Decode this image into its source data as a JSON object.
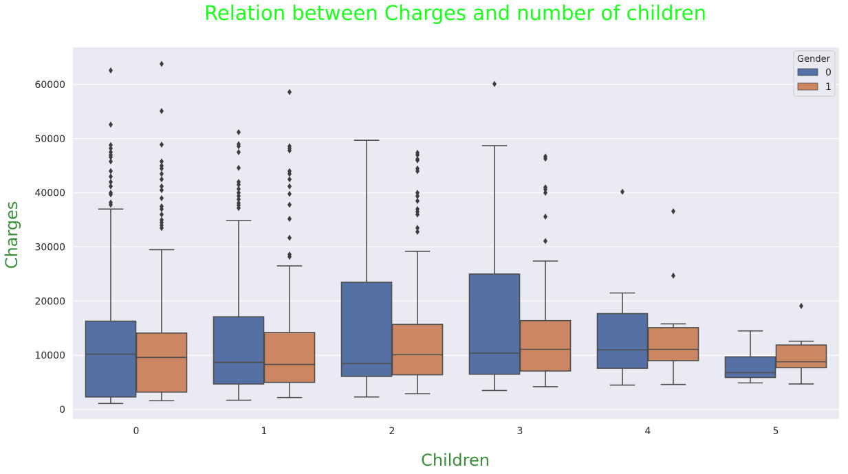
{
  "chart_data": {
    "type": "box",
    "title": "Relation between Charges and number of children",
    "xlabel": "Children",
    "ylabel": "Charges",
    "categories": [
      "0",
      "1",
      "2",
      "3",
      "4",
      "5"
    ],
    "ylim": [
      -2000,
      67000
    ],
    "yticks": [
      0,
      10000,
      20000,
      30000,
      40000,
      50000,
      60000
    ],
    "grid": true,
    "legend": {
      "title": "Gender",
      "position": "top-right"
    },
    "colors": {
      "title": "#1aff1a",
      "axis_label": "#3a8f3a",
      "background": "#eaeaf2",
      "grid": "#ffffff",
      "line": "#4d4d4d"
    },
    "series": [
      {
        "name": "0",
        "color": "#5470a4",
        "boxes": [
          {
            "whislo": 1100,
            "q1": 2300,
            "med": 10200,
            "q3": 16300,
            "whishi": 37000,
            "fliers": [
              37800,
              38200,
              39700,
              40000,
              41200,
              42000,
              43000,
              44000,
              45800,
              46600,
              47000,
              47500,
              48200,
              48800,
              52600,
              62600
            ]
          },
          {
            "whislo": 1700,
            "q1": 4700,
            "med": 8700,
            "q3": 17100,
            "whishi": 34900,
            "fliers": [
              37200,
              37700,
              38100,
              38800,
              39400,
              40000,
              40700,
              41500,
              42000,
              44600,
              47500,
              48600,
              49000,
              51200
            ]
          },
          {
            "whislo": 2300,
            "q1": 6100,
            "med": 8500,
            "q3": 23500,
            "whishi": 49700,
            "fliers": []
          },
          {
            "whislo": 3500,
            "q1": 6500,
            "med": 10400,
            "q3": 25000,
            "whishi": 48700,
            "fliers": [
              60100
            ]
          },
          {
            "whislo": 4500,
            "q1": 7600,
            "med": 11000,
            "q3": 17700,
            "whishi": 21500,
            "fliers": [
              40200
            ]
          },
          {
            "whislo": 4900,
            "q1": 5900,
            "med": 6800,
            "q3": 9700,
            "whishi": 14500,
            "fliers": []
          }
        ]
      },
      {
        "name": "1",
        "color": "#cc8661",
        "boxes": [
          {
            "whislo": 1600,
            "q1": 3200,
            "med": 9600,
            "q3": 14100,
            "whishi": 29500,
            "fliers": [
              33500,
              34000,
              34500,
              35000,
              36000,
              37000,
              37500,
              39000,
              40500,
              41200,
              42500,
              43500,
              44500,
              45000,
              45800,
              48900,
              55100,
              63800
            ]
          },
          {
            "whislo": 2200,
            "q1": 5000,
            "med": 8300,
            "q3": 14200,
            "whishi": 26500,
            "fliers": [
              28200,
              28600,
              31700,
              35200,
              37800,
              39800,
              41200,
              42500,
              43500,
              44000,
              47800,
              48200,
              48600,
              58600
            ]
          },
          {
            "whislo": 2900,
            "q1": 6400,
            "med": 10100,
            "q3": 15700,
            "whishi": 29200,
            "fliers": [
              32800,
              33500,
              36000,
              36500,
              37000,
              38500,
              39400,
              40000,
              44000,
              44500,
              46000,
              46200,
              47000,
              47400
            ]
          },
          {
            "whislo": 4200,
            "q1": 7100,
            "med": 11100,
            "q3": 16400,
            "whishi": 27400,
            "fliers": [
              31100,
              35600,
              40000,
              40600,
              41000,
              46300,
              46700
            ]
          },
          {
            "whislo": 4600,
            "q1": 9000,
            "med": 11100,
            "q3": 15100,
            "whishi": 15800,
            "fliers": [
              24700,
              36600
            ]
          },
          {
            "whislo": 4700,
            "q1": 7700,
            "med": 8800,
            "q3": 11900,
            "whishi": 12600,
            "fliers": [
              19100
            ]
          }
        ]
      }
    ]
  }
}
